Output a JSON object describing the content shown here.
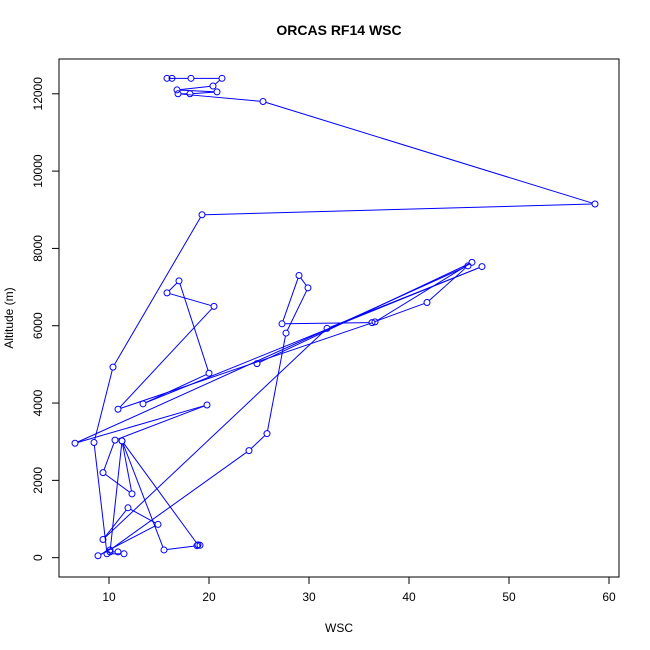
{
  "chart_data": {
    "type": "line",
    "title": "ORCAS RF14 WSC",
    "xlabel": "WSC",
    "ylabel": "Altitude (m)",
    "xlim": [
      5,
      61
    ],
    "ylim": [
      -500,
      12900
    ],
    "xticks": [
      10,
      20,
      30,
      40,
      50,
      60
    ],
    "yticks": [
      0,
      2000,
      4000,
      6000,
      8000,
      10000,
      12000
    ],
    "grid": false,
    "legend": "none",
    "series_color": "#0000ff",
    "series": [
      {
        "marker": "open-circle",
        "x": [
          16.3,
          15.8,
          18.2,
          21.3,
          20.4,
          16.8,
          20.8,
          18.1,
          16.9,
          25.4,
          58.6,
          19.3,
          10.4,
          8.5,
          9.8,
          11.5,
          10.9,
          10.1,
          11.3,
          15.5,
          18.8,
          19.1,
          18.9,
          11.3,
          12.3,
          9.4,
          10.6,
          19.8,
          6.6,
          45.9,
          41.8,
          36.3,
          27.3,
          29.0,
          29.9,
          27.7,
          25.8,
          24.0,
          10.1,
          8.9,
          14.9,
          11.9,
          9.4,
          31.8,
          47.3,
          13.4,
          20.0,
          17.0,
          15.8,
          20.5,
          10.9,
          36.6,
          46.3,
          24.8
        ],
        "y": [
          12400,
          12400,
          12400,
          12400,
          12200,
          12100,
          12050,
          12000,
          12000,
          11800,
          9150,
          8870,
          4930,
          2980,
          100,
          100,
          150,
          150,
          3020,
          200,
          310,
          320,
          330,
          3020,
          1650,
          2200,
          3040,
          3950,
          2960,
          7550,
          6600,
          6080,
          6050,
          7300,
          6980,
          5810,
          3210,
          2770,
          200,
          50,
          860,
          1290,
          470,
          5930,
          7530,
          3980,
          4770,
          7160,
          6850,
          6500,
          3840,
          6100,
          7640,
          5020
        ]
      }
    ]
  }
}
